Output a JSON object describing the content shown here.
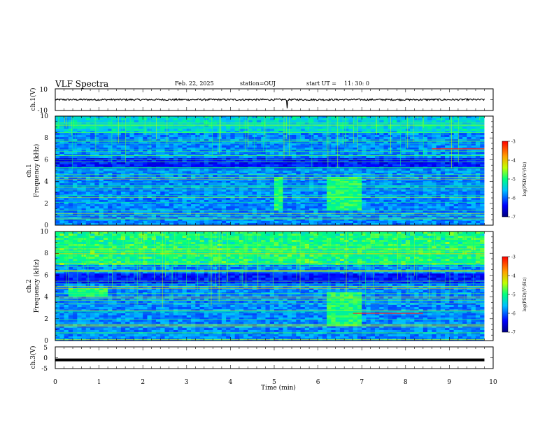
{
  "header": {
    "title": "VLF Spectra",
    "date": "Feb. 22, 2025",
    "station": "station=OUJ",
    "start_label": "start  UT =",
    "start_time": "11: 30: 0"
  },
  "chart_data": [
    {
      "type": "line",
      "panel": "ch1-waveform",
      "ylabel": "ch.1(V)",
      "ylim": [
        -10,
        10
      ],
      "yticks": [
        "10",
        "-10"
      ],
      "trace": "near-zero noisy signal, about +/-1 V, spike near 5.3 min",
      "color": "#000000"
    },
    {
      "type": "heatmap",
      "panel": "ch1-spectrogram",
      "ylabel_top": "ch.1",
      "ylabel": "Frequency (kHz)",
      "ylim": [
        0,
        10
      ],
      "yticks": [
        "0",
        "2",
        "4",
        "6",
        "8",
        "10"
      ],
      "xlim": [
        0,
        10
      ],
      "colorbar": {
        "label": "log(PSD)(V²/Hz)",
        "range": [
          -7,
          -3
        ],
        "ticks": [
          "-3",
          "-4",
          "-5",
          "-6",
          "-7"
        ]
      },
      "features": [
        {
          "kind": "broadband-burst",
          "t_start": 6.2,
          "t_end": 6.9,
          "f_low": 1.3,
          "f_high": 4.5
        },
        {
          "kind": "broadband-burst",
          "t_start": 5.0,
          "t_end": 5.2,
          "f_low": 1.3,
          "f_high": 4.5
        },
        {
          "kind": "narrowband-line",
          "freq_khz": 7.0,
          "t_start": 8.6,
          "t_end": 9.8
        }
      ]
    },
    {
      "type": "heatmap",
      "panel": "ch2-spectrogram",
      "ylabel_top": "ch.2",
      "ylabel": "Frequency (kHz)",
      "ylim": [
        0,
        10
      ],
      "yticks": [
        "0",
        "2",
        "4",
        "6",
        "8",
        "10"
      ],
      "xlim": [
        0,
        10
      ],
      "colorbar": {
        "label": "log(PSD)(V²/Hz)",
        "range": [
          -7,
          -3
        ],
        "ticks": [
          "-3",
          "-4",
          "-5",
          "-6",
          "-7"
        ]
      },
      "features": [
        {
          "kind": "broadband-burst",
          "t_start": 6.2,
          "t_end": 6.9,
          "f_low": 1.3,
          "f_high": 4.5
        },
        {
          "kind": "broadband-burst",
          "t_start": 0.3,
          "t_end": 1.1,
          "f_low": 4.0,
          "f_high": 4.8
        },
        {
          "kind": "narrowband-line",
          "freq_khz": 2.5,
          "t_start": 6.8,
          "t_end": 8.4
        }
      ]
    },
    {
      "type": "line",
      "panel": "ch3-waveform",
      "ylabel": "ch.3(V)",
      "ylim": [
        -5,
        5
      ],
      "yticks": [
        "5",
        "0",
        "-5"
      ],
      "xlabel": "Time (min)",
      "xlim": [
        0,
        10
      ],
      "xticks": [
        "0",
        "1",
        "2",
        "3",
        "4",
        "5",
        "6",
        "7",
        "8",
        "9",
        "10"
      ],
      "trace": "flat thick line near -1 V",
      "color": "#000000"
    }
  ],
  "colors": {
    "spectrum_low": "#00007f",
    "spectrum_mid": "#00ff80",
    "spectrum_high": "#ff0000",
    "axes": "#000000"
  }
}
